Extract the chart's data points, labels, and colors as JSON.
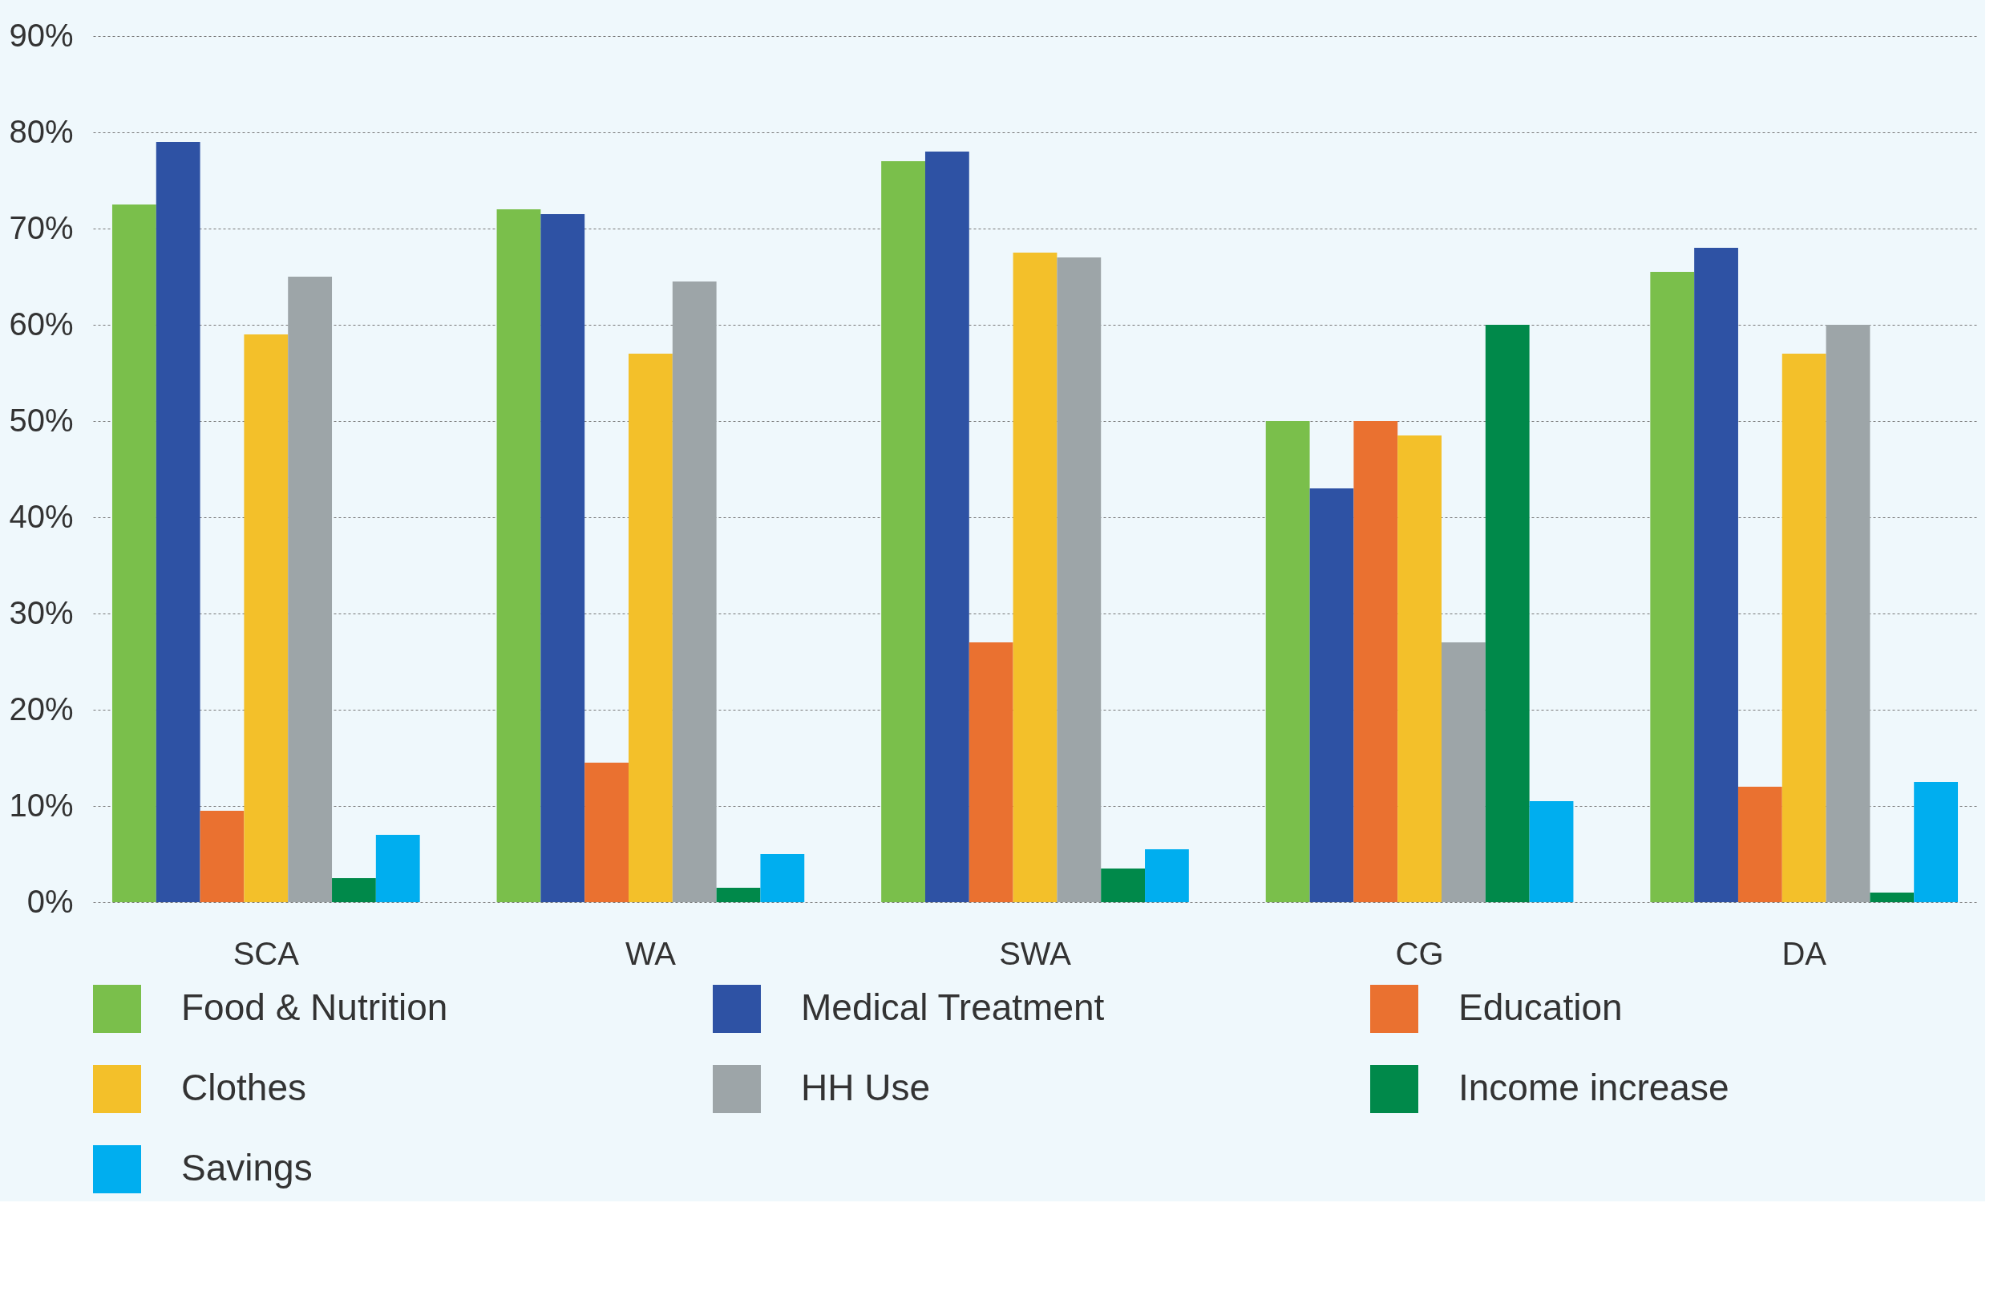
{
  "chart_data": {
    "type": "bar",
    "categories": [
      "SCA",
      "WA",
      "SWA",
      "CG",
      "DA"
    ],
    "series": [
      {
        "name": "Food & Nutrition",
        "color": "#7abf4b",
        "values": [
          72.5,
          72,
          77,
          50,
          65.5
        ]
      },
      {
        "name": "Medical Treatment",
        "color": "#2e52a4",
        "values": [
          79,
          71.5,
          78,
          43,
          68
        ]
      },
      {
        "name": "Education",
        "color": "#ea7130",
        "values": [
          9.5,
          14.5,
          27,
          50,
          12
        ]
      },
      {
        "name": "Clothes",
        "color": "#f3c02a",
        "values": [
          59,
          57,
          67.5,
          48.5,
          57
        ]
      },
      {
        "name": "HH Use",
        "color": "#9da5a8",
        "values": [
          65,
          64.5,
          67,
          27,
          60
        ]
      },
      {
        "name": "Income increase",
        "color": "#00894a",
        "values": [
          2.5,
          1.5,
          3.5,
          60,
          1
        ]
      },
      {
        "name": "Savings",
        "color": "#00aeef",
        "values": [
          7,
          5,
          5.5,
          10.5,
          12.5
        ]
      }
    ],
    "ylim": [
      0,
      90
    ],
    "yticks": [
      {
        "value": 0,
        "label": "0%"
      },
      {
        "value": 10,
        "label": "10%"
      },
      {
        "value": 20,
        "label": "20%"
      },
      {
        "value": 30,
        "label": "30%"
      },
      {
        "value": 40,
        "label": "40%"
      },
      {
        "value": 50,
        "label": "50%"
      },
      {
        "value": 60,
        "label": "60%"
      },
      {
        "value": 70,
        "label": "70%"
      },
      {
        "value": 80,
        "label": "80%"
      },
      {
        "value": 90,
        "label": "90%"
      }
    ],
    "grid": "y",
    "legend": "bottom"
  }
}
